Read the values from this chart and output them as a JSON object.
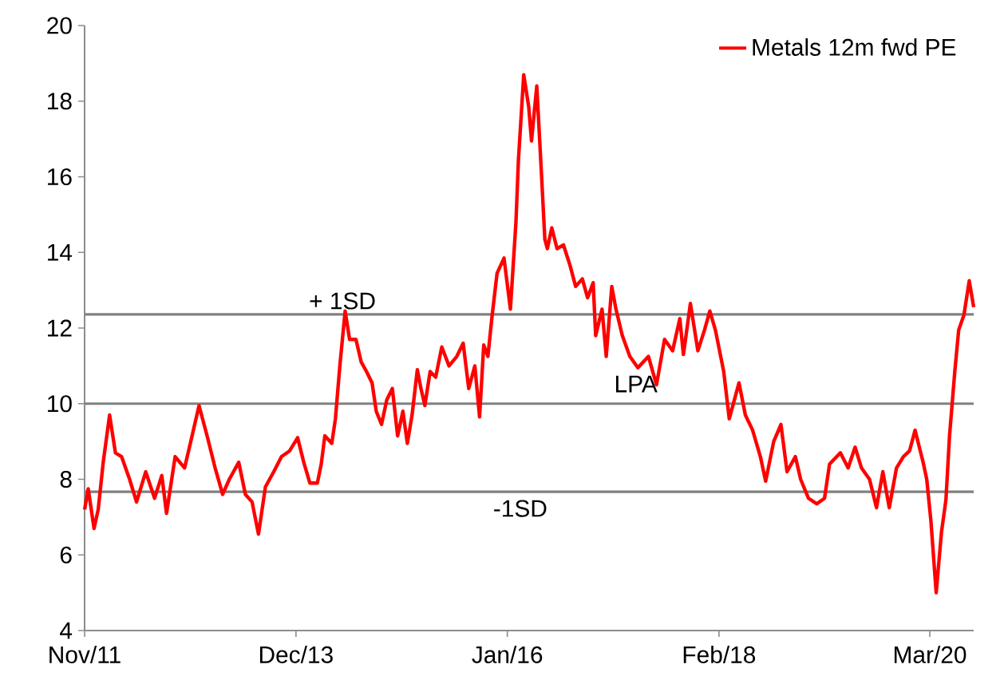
{
  "chart_data": {
    "type": "line",
    "x": [
      "2011-11-01",
      "2011-11-14",
      "2011-12-05",
      "2011-12-20",
      "2012-01-07",
      "2012-01-30",
      "2012-02-20",
      "2012-03-13",
      "2012-04-11",
      "2012-05-06",
      "2012-06-08",
      "2012-07-10",
      "2012-08-05",
      "2012-08-22",
      "2012-09-22",
      "2012-10-26",
      "2012-11-22",
      "2012-12-17",
      "2013-01-15",
      "2013-02-13",
      "2013-03-12",
      "2013-04-05",
      "2013-05-09",
      "2013-06-02",
      "2013-06-26",
      "2013-07-19",
      "2013-08-13",
      "2013-09-12",
      "2013-10-10",
      "2013-11-08",
      "2013-12-07",
      "2013-12-29",
      "2014-01-20",
      "2014-02-16",
      "2014-03-02",
      "2014-03-15",
      "2014-04-09",
      "2014-04-22",
      "2014-05-08",
      "2014-05-27",
      "2014-06-12",
      "2014-07-05",
      "2014-07-24",
      "2014-08-12",
      "2014-09-01",
      "2014-09-16",
      "2014-10-05",
      "2014-10-24",
      "2014-11-13",
      "2014-12-02",
      "2014-12-21",
      "2015-01-06",
      "2015-01-23",
      "2015-02-11",
      "2015-02-24",
      "2015-03-10",
      "2015-03-29",
      "2015-04-18",
      "2015-05-10",
      "2015-06-05",
      "2015-07-03",
      "2015-07-26",
      "2015-08-15",
      "2015-09-06",
      "2015-09-23",
      "2015-10-08",
      "2015-10-23",
      "2015-11-06",
      "2015-11-25",
      "2015-12-20",
      "2016-01-12",
      "2016-02-01",
      "2016-02-10",
      "2016-02-29",
      "2016-03-18",
      "2016-03-28",
      "2016-04-16",
      "2016-05-02",
      "2016-05-15",
      "2016-05-24",
      "2016-06-09",
      "2016-06-28",
      "2016-07-21",
      "2016-08-14",
      "2016-09-03",
      "2016-09-27",
      "2016-10-16",
      "2016-11-05",
      "2016-11-14",
      "2016-12-07",
      "2016-12-22",
      "2017-01-11",
      "2017-01-26",
      "2017-02-18",
      "2017-03-17",
      "2017-04-15",
      "2017-05-23",
      "2017-06-21",
      "2017-07-20",
      "2017-08-18",
      "2017-09-13",
      "2017-09-26",
      "2017-10-21",
      "2017-11-17",
      "2017-12-11",
      "2017-12-30",
      "2018-01-19",
      "2018-02-18",
      "2018-03-10",
      "2018-04-14",
      "2018-05-07",
      "2018-06-02",
      "2018-06-30",
      "2018-07-19",
      "2018-08-17",
      "2018-09-12",
      "2018-10-04",
      "2018-11-03",
      "2018-11-22",
      "2018-12-20",
      "2019-01-19",
      "2019-02-16",
      "2019-03-06",
      "2019-04-14",
      "2019-05-12",
      "2019-06-06",
      "2019-06-29",
      "2019-07-28",
      "2019-08-22",
      "2019-09-14",
      "2019-10-07",
      "2019-11-02",
      "2019-11-27",
      "2019-12-19",
      "2020-01-08",
      "2020-02-06",
      "2020-02-19",
      "2020-03-05",
      "2020-03-24",
      "2020-04-12",
      "2020-04-28",
      "2020-05-11",
      "2020-05-30",
      "2020-06-13",
      "2020-07-02",
      "2020-07-21",
      "2020-08-06"
    ],
    "series": [
      {
        "name": "Metals 12m fwd PE",
        "color": "#ff0000",
        "values": [
          7.2,
          7.75,
          6.7,
          7.2,
          8.45,
          9.7,
          8.7,
          8.6,
          8.0,
          7.4,
          8.2,
          7.5,
          8.1,
          7.1,
          8.6,
          8.3,
          9.15,
          9.95,
          9.15,
          8.3,
          7.6,
          8.0,
          8.45,
          7.6,
          7.4,
          6.55,
          7.8,
          8.2,
          8.6,
          8.75,
          9.1,
          8.45,
          7.9,
          7.9,
          8.4,
          9.15,
          8.95,
          9.6,
          11.0,
          12.45,
          11.7,
          11.7,
          11.1,
          10.85,
          10.55,
          9.8,
          9.45,
          10.1,
          10.4,
          9.15,
          9.8,
          8.95,
          9.7,
          10.9,
          10.4,
          9.95,
          10.85,
          10.7,
          11.5,
          11.0,
          11.25,
          11.6,
          10.4,
          11.0,
          9.65,
          11.55,
          11.25,
          12.25,
          13.45,
          13.85,
          12.5,
          14.8,
          16.45,
          18.7,
          17.85,
          16.95,
          18.4,
          16.2,
          14.35,
          14.1,
          14.65,
          14.1,
          14.2,
          13.65,
          13.1,
          13.3,
          12.8,
          13.2,
          11.8,
          12.5,
          11.25,
          13.1,
          12.5,
          11.8,
          11.25,
          10.95,
          11.25,
          10.5,
          11.7,
          11.4,
          12.25,
          11.3,
          12.65,
          11.4,
          11.95,
          12.45,
          11.95,
          10.85,
          9.6,
          10.55,
          9.7,
          9.3,
          8.6,
          7.95,
          9.0,
          9.45,
          8.2,
          8.6,
          8.0,
          7.5,
          7.35,
          7.5,
          8.4,
          8.7,
          8.3,
          8.85,
          8.3,
          8.0,
          7.25,
          8.2,
          7.25,
          8.3,
          8.6,
          8.75,
          9.3,
          8.45,
          8.0,
          6.9,
          5.0,
          6.6,
          7.45,
          9.15,
          10.85,
          11.95,
          12.35,
          13.25,
          12.55
        ]
      }
    ],
    "xlim": [
      "2011-11-01",
      "2020-08-06"
    ],
    "xticks": [
      {
        "value": "2011-11-01",
        "label": "Nov/11"
      },
      {
        "value": "2013-12-01",
        "label": "Dec/13"
      },
      {
        "value": "2016-01-01",
        "label": "Jan/16"
      },
      {
        "value": "2018-02-01",
        "label": "Feb/18"
      },
      {
        "value": "2020-03-01",
        "label": "Mar/20"
      }
    ],
    "ylim": [
      4,
      20
    ],
    "yticks": [
      4,
      6,
      8,
      10,
      12,
      14,
      16,
      18,
      20
    ],
    "ref_lines": [
      {
        "axis": "y",
        "value": 12.36,
        "color": "#808080",
        "label": "+ 1SD"
      },
      {
        "axis": "y",
        "value": 10.0,
        "color": "#808080",
        "label": "LPA"
      },
      {
        "axis": "y",
        "value": 7.67,
        "color": "#808080",
        "label": "-1SD"
      }
    ],
    "legend": "top right",
    "line_style": "solid",
    "marker": "none"
  }
}
